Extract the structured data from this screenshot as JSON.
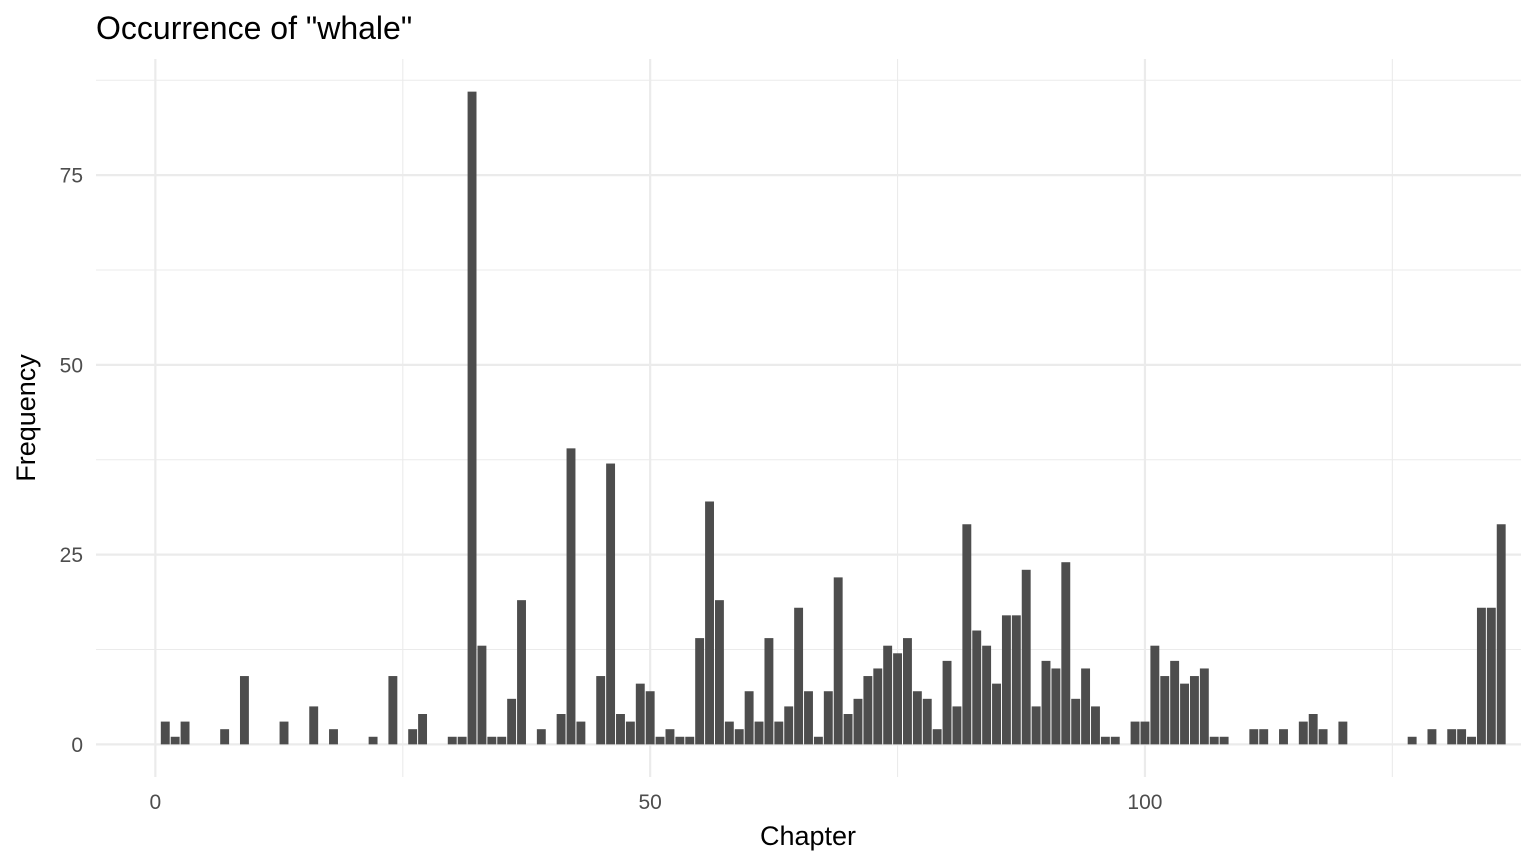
{
  "chart_data": {
    "type": "bar",
    "title": "Occurrence of \"whale\"",
    "xlabel": "Chapter",
    "ylabel": "Frequency",
    "xlim": [
      -6,
      138
    ],
    "ylim": [
      -4.3,
      90.3
    ],
    "x_ticks": [
      0,
      50,
      100
    ],
    "y_ticks": [
      0,
      25,
      50,
      75
    ],
    "grid": true,
    "bar_color": "#4d4d4d",
    "x": [
      1,
      2,
      3,
      7,
      9,
      13,
      16,
      18,
      22,
      24,
      26,
      27,
      30,
      31,
      32,
      33,
      34,
      35,
      36,
      37,
      39,
      41,
      42,
      43,
      45,
      46,
      47,
      48,
      49,
      50,
      51,
      52,
      53,
      54,
      55,
      56,
      57,
      58,
      59,
      60,
      61,
      62,
      63,
      64,
      65,
      66,
      67,
      68,
      69,
      70,
      71,
      72,
      73,
      74,
      75,
      76,
      77,
      78,
      79,
      80,
      81,
      82,
      83,
      84,
      85,
      86,
      87,
      88,
      89,
      90,
      91,
      92,
      93,
      94,
      95,
      96,
      97,
      99,
      100,
      101,
      102,
      103,
      104,
      105,
      106,
      107,
      108,
      111,
      112,
      114,
      116,
      117,
      118,
      120,
      127,
      129,
      131,
      132,
      133,
      134,
      135,
      136
    ],
    "values": [
      3,
      1,
      3,
      2,
      9,
      3,
      5,
      2,
      1,
      9,
      2,
      4,
      1,
      1,
      86,
      13,
      1,
      1,
      6,
      19,
      2,
      4,
      39,
      3,
      9,
      37,
      4,
      3,
      8,
      7,
      1,
      2,
      1,
      1,
      14,
      32,
      19,
      3,
      2,
      7,
      3,
      14,
      3,
      5,
      18,
      7,
      1,
      7,
      22,
      4,
      6,
      9,
      10,
      13,
      12,
      14,
      7,
      6,
      2,
      11,
      5,
      29,
      15,
      13,
      8,
      17,
      17,
      23,
      5,
      11,
      10,
      24,
      6,
      10,
      5,
      1,
      1,
      3,
      3,
      13,
      9,
      11,
      8,
      9,
      10,
      1,
      1,
      2,
      2,
      2,
      3,
      4,
      2,
      3,
      1,
      2,
      2,
      2,
      1,
      18,
      18,
      29
    ]
  }
}
